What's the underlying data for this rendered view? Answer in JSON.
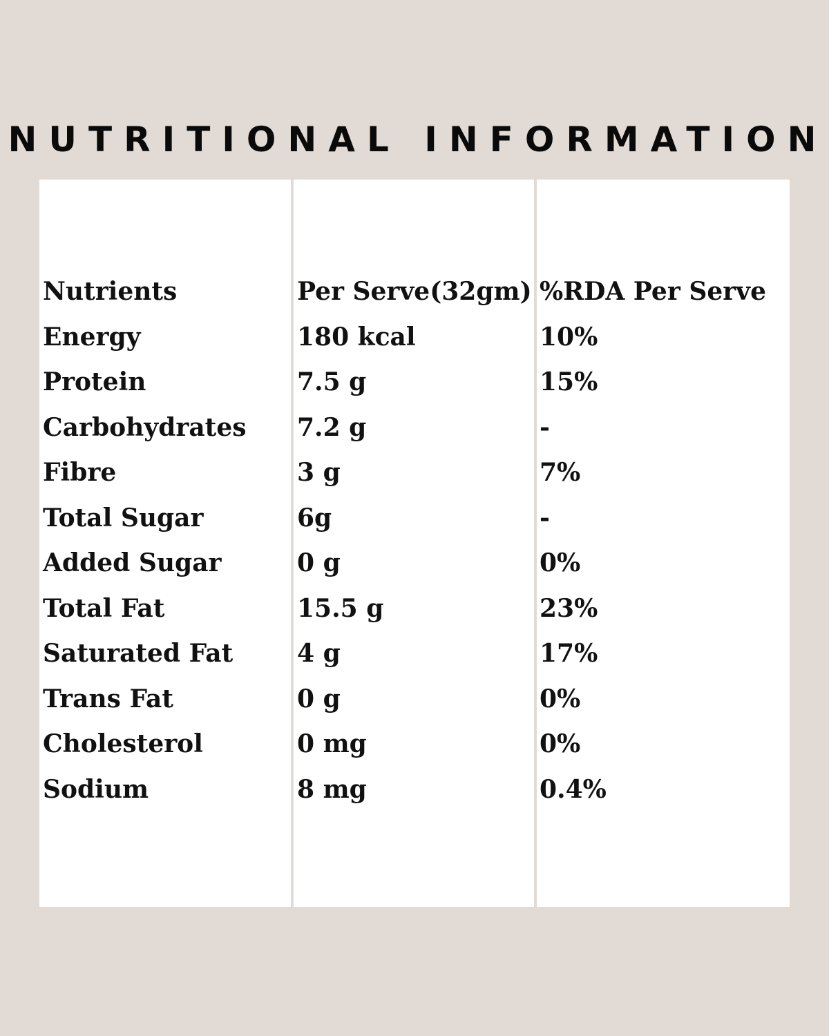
{
  "title": "NUTRITIONAL INFORMATION",
  "table": {
    "headers": [
      "Nutrients",
      "Per Serve(32gm)",
      "%RDA Per Serve"
    ],
    "rows": [
      [
        "Energy",
        "180 kcal",
        "10%"
      ],
      [
        "Protein",
        "7.5 g",
        "15%"
      ],
      [
        "Carbohydrates",
        "7.2 g",
        "-"
      ],
      [
        "Fibre",
        "3 g",
        "7%"
      ],
      [
        "Total Sugar",
        "6g",
        "-"
      ],
      [
        "Added Sugar",
        "0 g",
        "0%"
      ],
      [
        "Total Fat",
        "15.5 g",
        "23%"
      ],
      [
        "Saturated Fat",
        "4 g",
        "17%"
      ],
      [
        "Trans Fat",
        "0 g",
        "0%"
      ],
      [
        "Cholesterol",
        "0 mg",
        "0%"
      ],
      [
        "Sodium",
        "8 mg",
        "0.4%"
      ]
    ]
  }
}
